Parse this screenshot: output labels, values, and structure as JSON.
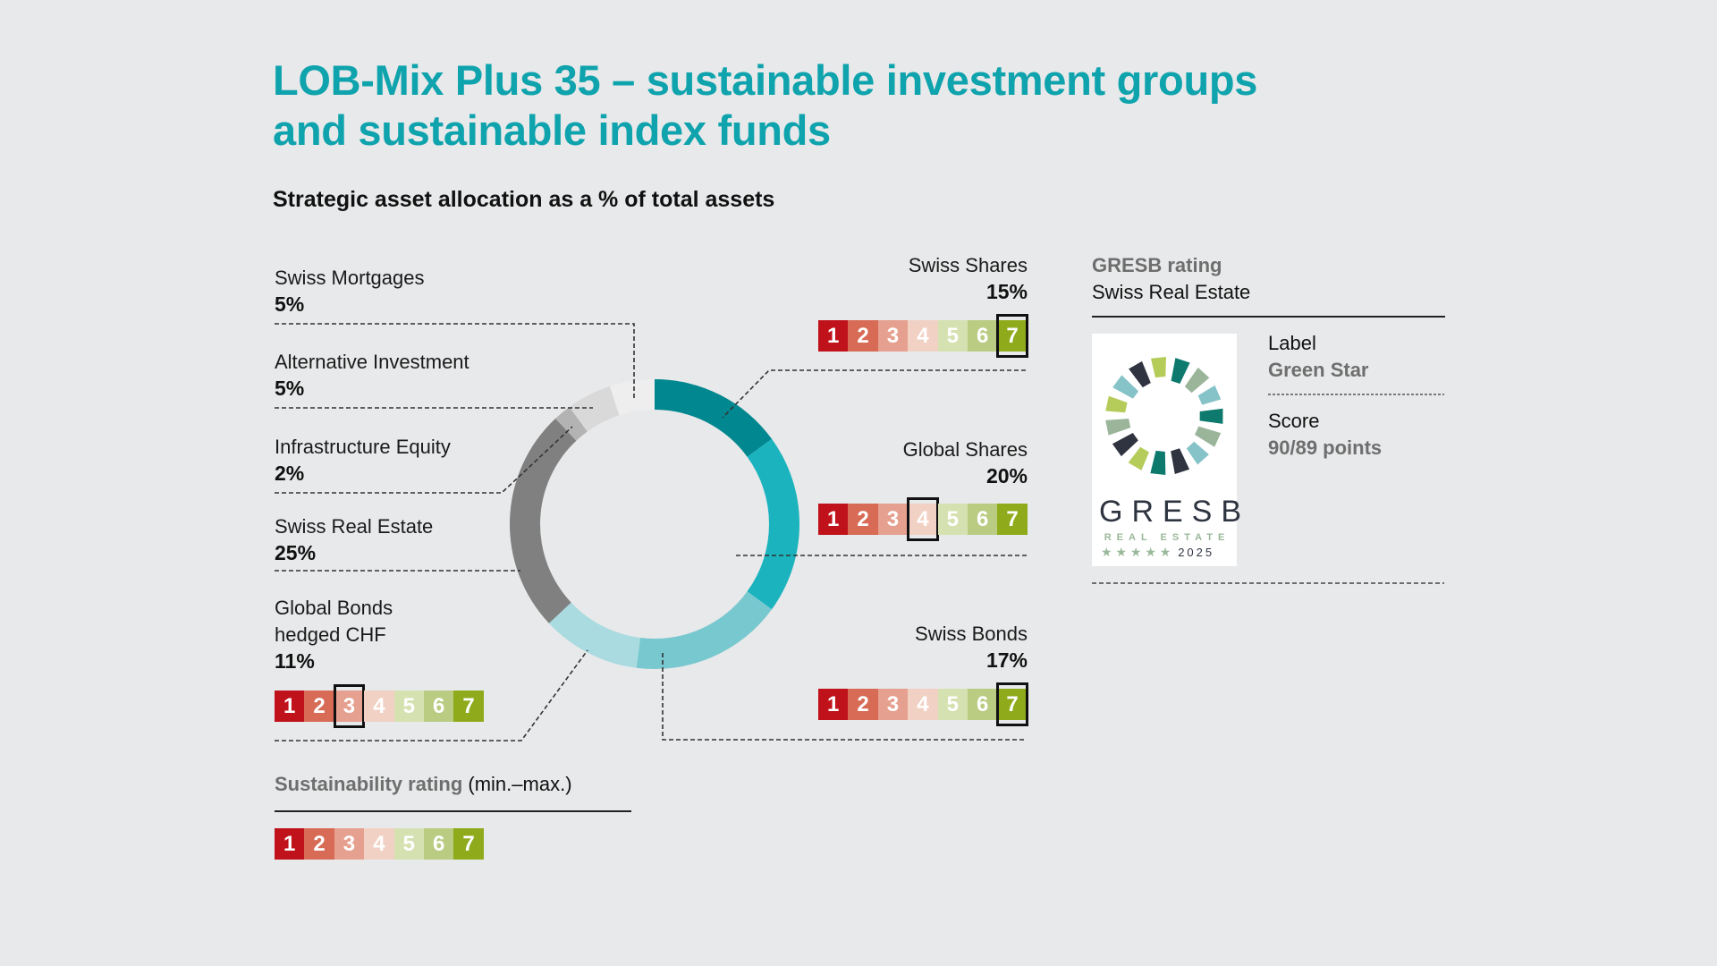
{
  "title": {
    "line1": "LOB-Mix Plus 35 – sustainable investment groups",
    "line2": "and sustainable index funds"
  },
  "subtitle": "Strategic asset allocation as a % of total assets",
  "allocations": [
    {
      "name": "Swiss Mortgages",
      "percent": "5%"
    },
    {
      "name": "Alternative Investment",
      "percent": "5%"
    },
    {
      "name": "Infrastructure Equity",
      "percent": "2%"
    },
    {
      "name": "Swiss Real Estate",
      "percent": "25%"
    },
    {
      "name": "Global Bonds",
      "name2": "hedged CHF",
      "percent": "11%",
      "rating": 3
    },
    {
      "name": "Swiss Shares",
      "percent": "15%",
      "rating": 7
    },
    {
      "name": "Global Shares",
      "percent": "20%",
      "rating": 4
    },
    {
      "name": "Swiss Bonds",
      "percent": "17%",
      "rating": 7
    }
  ],
  "rating_scale": {
    "labels": [
      "1",
      "2",
      "3",
      "4",
      "5",
      "6",
      "7"
    ],
    "colors": [
      "#c0121b",
      "#d76b56",
      "#e6a08f",
      "#f2d1c5",
      "#d6e1b1",
      "#b9cc82",
      "#8fab1c"
    ]
  },
  "legend": {
    "title": "Sustainability rating",
    "range": "(min.–max.)"
  },
  "gresb": {
    "heading": "GRESB rating",
    "subheading": "Swiss Real Estate",
    "logo_word": "GRESB",
    "logo_sub": "REAL ESTATE",
    "logo_stars": "★ ★ ★ ★ ★",
    "logo_year": "2025",
    "label_title": "Label",
    "label_value": "Green Star",
    "score_title": "Score",
    "score_value": "90/89 points"
  },
  "chart_data": {
    "type": "pie",
    "title": "Strategic asset allocation as a % of total assets",
    "subtitle": "LOB-Mix Plus 35 – sustainable investment groups and sustainable index funds",
    "donut": true,
    "categories": [
      "Swiss Shares",
      "Global Shares",
      "Swiss Bonds",
      "Global Bonds hedged CHF",
      "Swiss Real Estate",
      "Infrastructure Equity",
      "Alternative Investment",
      "Swiss Mortgages"
    ],
    "values": [
      15,
      20,
      17,
      11,
      25,
      2,
      5,
      5
    ],
    "colors": [
      "#00878f",
      "#1ab3be",
      "#78c8d0",
      "#a9dbe0",
      "#808080",
      "#b3b3b3",
      "#d9d9d9",
      "#eeeeee"
    ],
    "sustainability_rating": {
      "scale": [
        1,
        7
      ],
      "Swiss Shares": 7,
      "Global Shares": 4,
      "Swiss Bonds": 7,
      "Global Bonds hedged CHF": 3
    },
    "annotations": [
      "GRESB rating Swiss Real Estate: Label Green Star, Score 90/89 points"
    ]
  }
}
